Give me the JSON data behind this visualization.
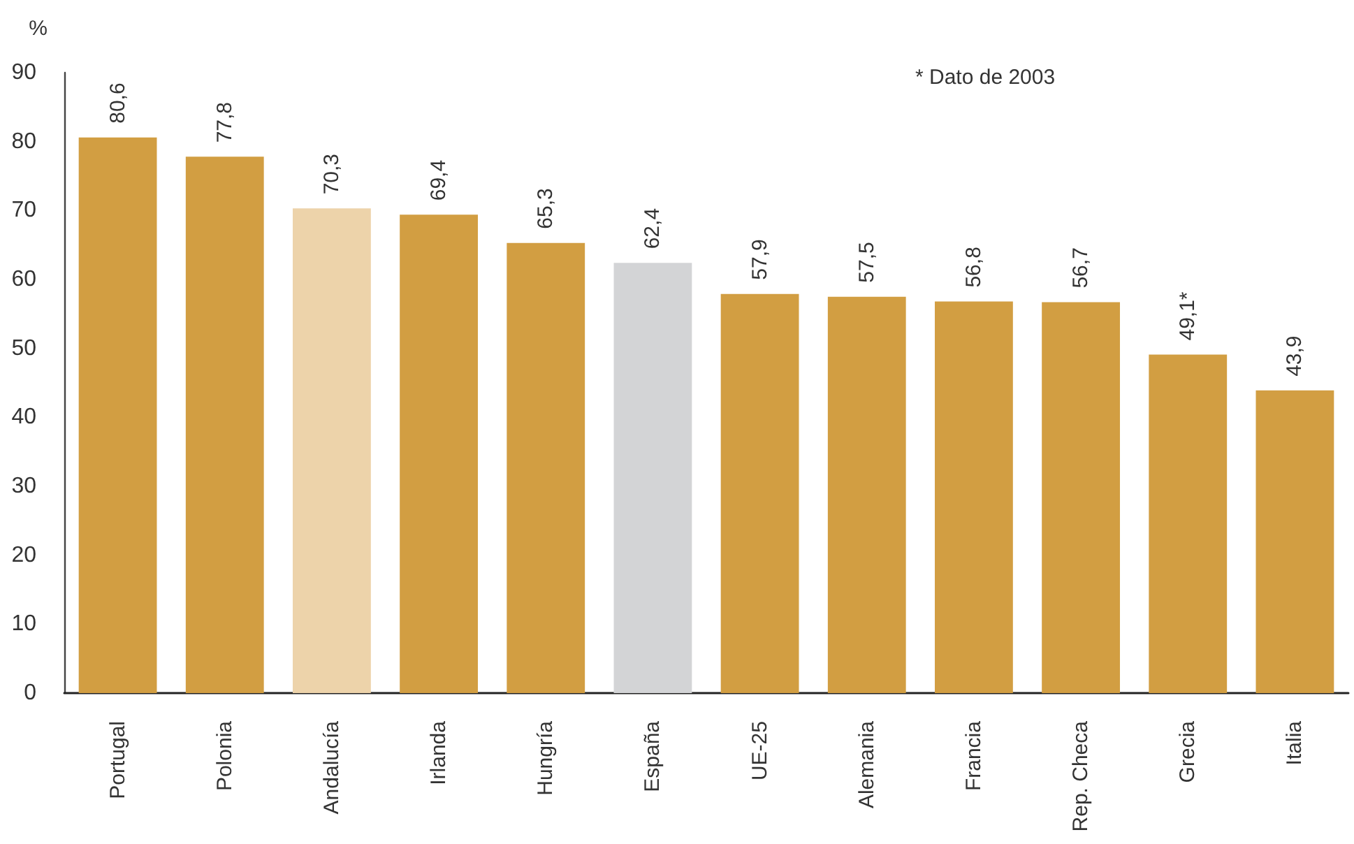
{
  "chart_data": {
    "type": "bar",
    "ylabel": "%",
    "categories": [
      "Portugal",
      "Polonia",
      "Andalucía",
      "Irlanda",
      "Hungría",
      "España",
      "UE-25",
      "Alemania",
      "Francia",
      "Rep. Checa",
      "Grecia",
      "Italia"
    ],
    "values": [
      80.6,
      77.8,
      70.3,
      69.4,
      65.3,
      62.4,
      57.9,
      57.5,
      56.8,
      56.7,
      49.1,
      43.9
    ],
    "colors": [
      "#d29e42",
      "#d29e42",
      "#edd3aa",
      "#d29e42",
      "#d29e42",
      "#d3d4d6",
      "#d29e42",
      "#d29e42",
      "#d29e42",
      "#d29e42",
      "#d29e42",
      "#d29e42"
    ],
    "value_labels": [
      "80,6",
      "77,8",
      "70,3",
      "69,4",
      "65,3",
      "62,4",
      "57,9",
      "57,5",
      "56,8",
      "56,7",
      "49,1*",
      "43,9"
    ],
    "ylim": [
      0,
      90
    ],
    "yticks": [
      0,
      10,
      20,
      30,
      40,
      50,
      60,
      70,
      80,
      90
    ],
    "grid": false,
    "annotations": [
      "* Dato de 2003"
    ]
  }
}
